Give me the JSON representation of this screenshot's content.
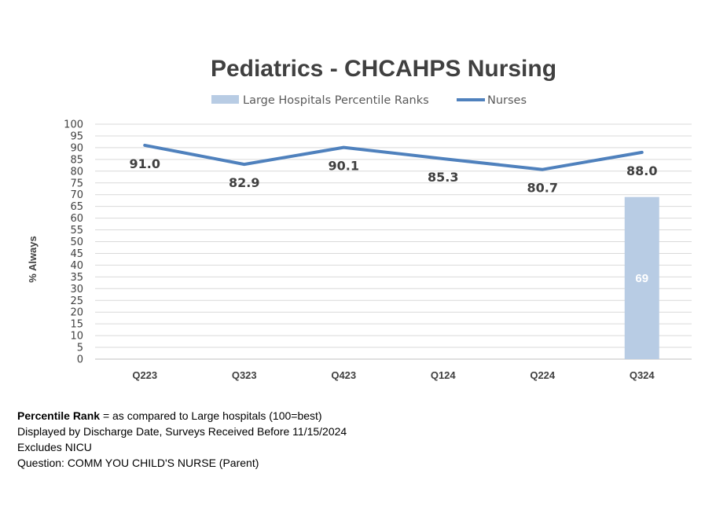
{
  "chart_data": {
    "type": "bar+line",
    "title": "Pediatrics - CHCAHPS Nursing",
    "ylabel": "% Always",
    "ylim": [
      0,
      100
    ],
    "ytick_step": 5,
    "grid": true,
    "legend_placement": "top-center",
    "categories": [
      "Q223",
      "Q323",
      "Q423",
      "Q124",
      "Q224",
      "Q324"
    ],
    "series": [
      {
        "name": "Large Hospitals Percentile Ranks",
        "type": "bar",
        "color": "#b8cce4",
        "values": [
          null,
          null,
          null,
          null,
          null,
          69
        ],
        "labels": [
          "",
          "",
          "",
          "",
          "",
          "69"
        ]
      },
      {
        "name": "Nurses",
        "type": "line",
        "color": "#4f81bd",
        "values": [
          91.0,
          82.9,
          90.1,
          85.3,
          80.7,
          88.0
        ],
        "labels": [
          "91.0",
          "82.9",
          "90.1",
          "85.3",
          "80.7",
          "88.0"
        ]
      }
    ]
  },
  "notes": {
    "line1_bold": "Percentile Rank",
    "line1_rest": " = as compared to Large hospitals (100=best)",
    "line2": "Displayed by Discharge Date, Surveys Received Before  11/15/2024",
    "line3": "Excludes NICU",
    "line4": "Question: COMM YOU CHILD'S NURSE (Parent)"
  }
}
